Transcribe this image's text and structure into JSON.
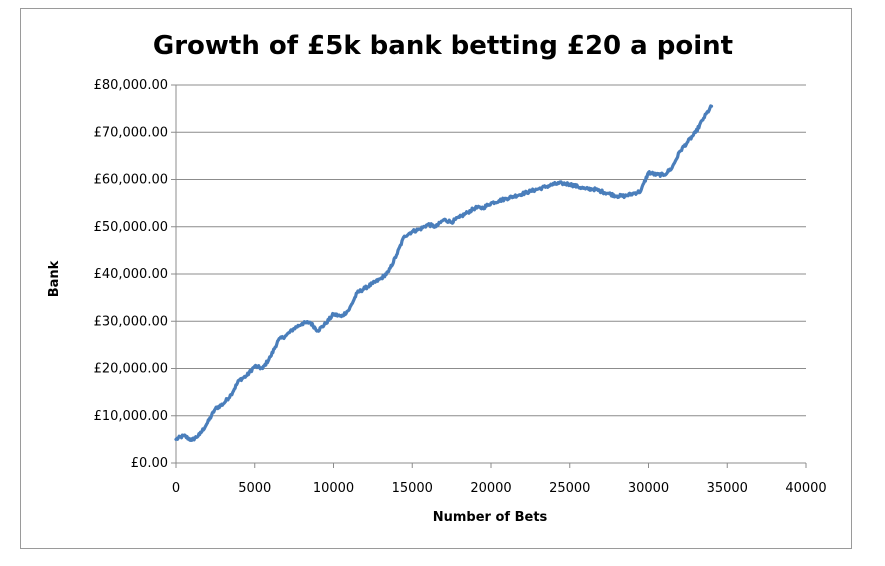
{
  "chart_data": {
    "type": "line",
    "title": "Growth of £5k bank betting £20 a point",
    "xlabel": "Number of Bets",
    "ylabel": "Bank",
    "xlim": [
      0,
      40000
    ],
    "ylim": [
      0,
      80000
    ],
    "x_ticks": [
      "0",
      "5000",
      "10000",
      "15000",
      "20000",
      "25000",
      "30000",
      "35000",
      "40000"
    ],
    "y_ticks": [
      "£0.00",
      "£10,000.00",
      "£20,000.00",
      "£30,000.00",
      "£40,000.00",
      "£50,000.00",
      "£60,000.00",
      "£70,000.00",
      "£80,000.00"
    ],
    "grid": "horizontal",
    "legend": "none",
    "series_color": "#4a7ebb",
    "series": [
      {
        "x": [
          0,
          500,
          1000,
          1500,
          2000,
          2500,
          3000,
          3500,
          4000,
          4500,
          5000,
          5500,
          6000,
          6500,
          7000,
          7500,
          8000,
          8500,
          9000,
          9500,
          10000,
          10500,
          11000,
          11500,
          12000,
          12500,
          13000,
          13500,
          14000,
          14500,
          15000,
          15500,
          16000,
          16500,
          17000,
          17500,
          18000,
          18500,
          19000,
          19500,
          20000,
          20500,
          21000,
          21500,
          22000,
          22500,
          23000,
          23500,
          24000,
          24500,
          25000,
          25500,
          26000,
          26500,
          27000,
          27500,
          28000,
          28500,
          29000,
          29500,
          30000,
          30500,
          31000,
          31500,
          32000,
          32500,
          33000,
          33500,
          34000
        ],
        "y": [
          5000,
          5800,
          4800,
          6000,
          8500,
          11500,
          12500,
          14500,
          17500,
          18500,
          20500,
          20000,
          22500,
          26000,
          27000,
          28500,
          29500,
          29800,
          28000,
          29500,
          31500,
          31000,
          32500,
          36000,
          37000,
          38000,
          39000,
          40500,
          44000,
          48000,
          49000,
          49500,
          50500,
          50000,
          51500,
          51000,
          52000,
          53000,
          54000,
          54000,
          55000,
          55500,
          56000,
          56500,
          57000,
          57500,
          58000,
          58500,
          59000,
          59200,
          59000,
          58500,
          58000,
          58000,
          57500,
          57000,
          56500,
          56500,
          57000,
          57500,
          61500,
          61000,
          61000,
          62500,
          66000,
          68000,
          70000,
          73000,
          75500
        ]
      }
    ]
  }
}
